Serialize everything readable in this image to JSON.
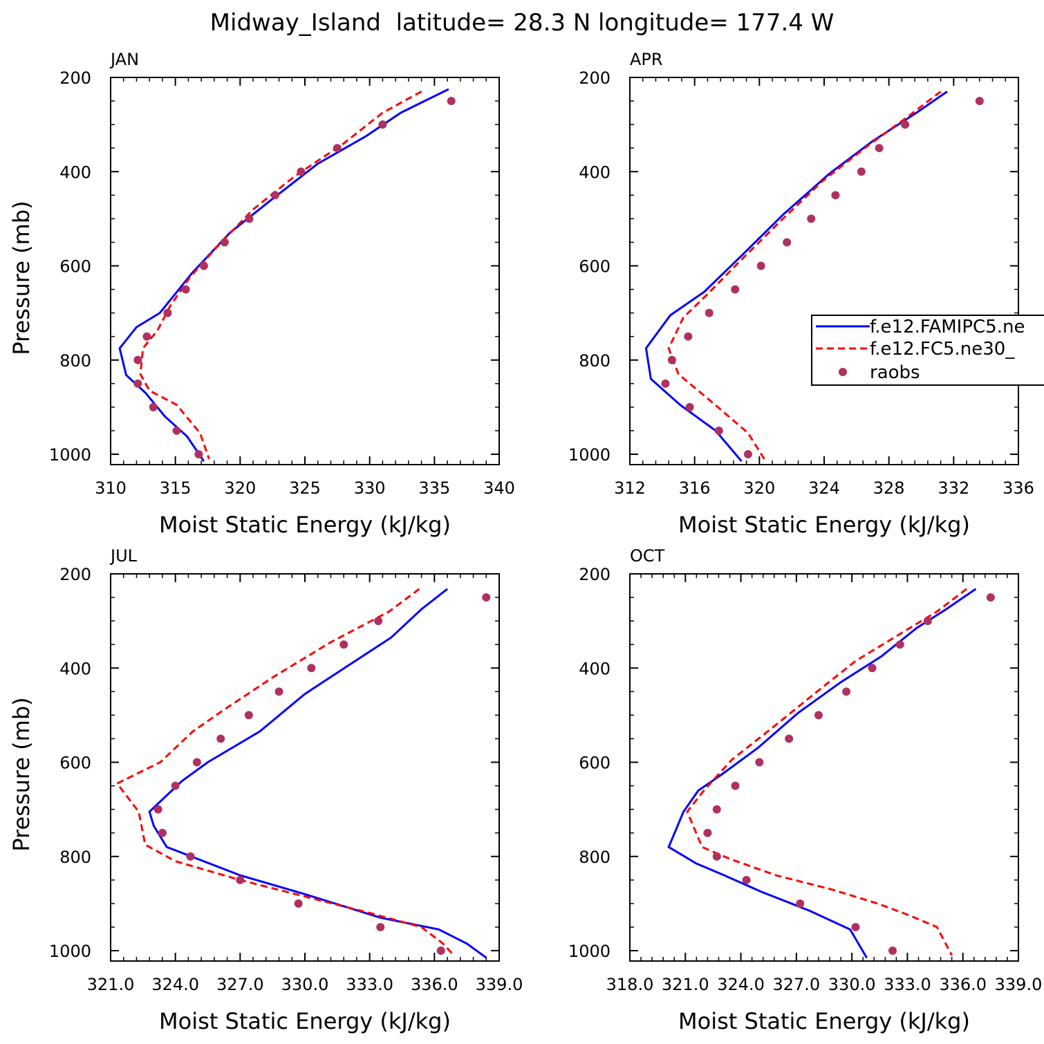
{
  "figure_title": "Midway_Island  latitude= 28.3 N longitude= 177.4 W",
  "legend": {
    "entries": [
      {
        "label": "f.e12.FAMIPC5.ne",
        "color": "#0000ff",
        "style": "solid"
      },
      {
        "label": "f.e12.FC5.ne30_",
        "color": "#ff0000",
        "style": "dashed"
      },
      {
        "label": "raobs",
        "color": "#b03060",
        "style": "dot"
      }
    ]
  },
  "colors": {
    "model1": "#0000ff",
    "model2": "#ff0000",
    "raobs": "#b03060"
  },
  "chart_data": [
    {
      "type": "line",
      "panel": "JAN",
      "title": "JAN",
      "xlabel": "Moist Static Energy (kJ/kg)",
      "ylabel": "Pressure (mb)",
      "xlim": [
        310,
        340
      ],
      "ylim": [
        200,
        1000
      ],
      "y_inverted": true,
      "xticks": [
        "310",
        "315",
        "320",
        "325",
        "330",
        "335",
        "340"
      ],
      "xtick_values": [
        310,
        315,
        320,
        325,
        330,
        335,
        340
      ],
      "yticks": [
        "200",
        "400",
        "600",
        "800",
        "1000"
      ],
      "series": [
        {
          "name": "f.e12.FAMIPC5.ne",
          "style": "line",
          "x": [
            336.1,
            332.4,
            329.7,
            326.0,
            322.4,
            319.2,
            316.3,
            313.8,
            312.0,
            310.7,
            311.2,
            312.7,
            314.2,
            315.9,
            317.2
          ],
          "y": [
            225,
            275,
            325,
            383,
            460,
            530,
            615,
            700,
            730,
            775,
            832,
            870,
            920,
            962,
            1015
          ]
        },
        {
          "name": "f.e12.FC5.ne30_",
          "style": "dashed",
          "x": [
            334.0,
            331.0,
            328.0,
            324.2,
            321.0,
            318.2,
            316.1,
            314.6,
            313.6,
            312.5,
            312.3,
            313.0,
            315.1,
            316.9,
            317.6
          ],
          "y": [
            230,
            275,
            340,
            410,
            480,
            560,
            625,
            685,
            738,
            775,
            830,
            865,
            895,
            955,
            1010
          ]
        },
        {
          "name": "raobs",
          "style": "dot",
          "x": [
            336.3,
            331.0,
            327.5,
            324.7,
            322.7,
            320.7,
            318.8,
            317.2,
            315.8,
            314.4,
            312.8,
            312.1,
            312.1,
            313.3,
            315.1,
            316.8
          ],
          "y": [
            250,
            300,
            350,
            400,
            450,
            500,
            550,
            600,
            650,
            700,
            750,
            800,
            850,
            900,
            950,
            1000
          ]
        }
      ]
    },
    {
      "type": "line",
      "panel": "APR",
      "title": "APR",
      "xlabel": "Moist Static Energy (kJ/kg)",
      "ylabel": "",
      "xlim": [
        312,
        336
      ],
      "ylim": [
        200,
        1000
      ],
      "y_inverted": true,
      "xticks": [
        "312",
        "316",
        "320",
        "324",
        "328",
        "332",
        "336"
      ],
      "xtick_values": [
        312,
        316,
        320,
        324,
        328,
        332,
        336
      ],
      "yticks": [
        "200",
        "400",
        "600",
        "800",
        "1000"
      ],
      "series": [
        {
          "name": "f.e12.FAMIPC5.ne",
          "style": "line",
          "x": [
            331.6,
            329.7,
            327.0,
            324.3,
            321.5,
            319.0,
            316.6,
            314.5,
            313.0,
            313.3,
            315.1,
            317.3,
            318.9
          ],
          "y": [
            230,
            275,
            335,
            405,
            490,
            575,
            655,
            705,
            775,
            840,
            895,
            950,
            1015
          ]
        },
        {
          "name": "f.e12.FC5.ne30_",
          "style": "dashed",
          "x": [
            331.2,
            329.3,
            326.7,
            323.9,
            321.3,
            318.8,
            316.8,
            315.3,
            314.4,
            315.0,
            317.1,
            319.3,
            320.3
          ],
          "y": [
            230,
            280,
            345,
            420,
            505,
            590,
            660,
            710,
            775,
            830,
            890,
            955,
            1010
          ]
        },
        {
          "name": "raobs",
          "style": "dot",
          "x": [
            333.6,
            329.0,
            327.4,
            326.3,
            324.7,
            323.2,
            321.7,
            320.1,
            318.5,
            316.9,
            315.6,
            314.6,
            314.2,
            315.7,
            317.5,
            319.3
          ],
          "y": [
            250,
            300,
            350,
            400,
            450,
            500,
            550,
            600,
            650,
            700,
            750,
            800,
            850,
            900,
            950,
            1000
          ]
        }
      ]
    },
    {
      "type": "line",
      "panel": "JUL",
      "title": "JUL",
      "xlabel": "Moist Static Energy (kJ/kg)",
      "ylabel": "Pressure (mb)",
      "xlim": [
        321.0,
        339.0
      ],
      "ylim": [
        200,
        1000
      ],
      "y_inverted": true,
      "xticks": [
        "321.0",
        "324.0",
        "327.0",
        "330.0",
        "333.0",
        "336.0",
        "339.0"
      ],
      "xtick_values": [
        321,
        324,
        327,
        330,
        333,
        336,
        339
      ],
      "yticks": [
        "200",
        "400",
        "600",
        "800",
        "1000"
      ],
      "series": [
        {
          "name": "f.e12.FAMIPC5.ne",
          "style": "line",
          "x": [
            336.6,
            335.4,
            334.0,
            332.0,
            330.0,
            327.9,
            325.5,
            324.3,
            322.8,
            323.0,
            323.6,
            327.0,
            330.0,
            333.5,
            336.2,
            337.5,
            338.4
          ],
          "y": [
            232,
            275,
            335,
            395,
            455,
            535,
            600,
            640,
            705,
            735,
            780,
            840,
            880,
            930,
            955,
            985,
            1015
          ]
        },
        {
          "name": "f.e12.FC5.ne30_",
          "style": "dashed",
          "x": [
            335.3,
            333.9,
            331.2,
            328.5,
            326.2,
            324.8,
            323.3,
            321.3,
            322.3,
            322.6,
            324.0,
            327.0,
            330.0,
            333.0,
            335.4,
            336.4,
            336.9
          ],
          "y": [
            232,
            280,
            345,
            420,
            490,
            535,
            600,
            645,
            705,
            775,
            810,
            850,
            885,
            920,
            950,
            985,
            1010
          ]
        },
        {
          "name": "raobs",
          "style": "dot",
          "x": [
            338.4,
            333.4,
            331.8,
            330.3,
            328.8,
            327.4,
            326.1,
            325.0,
            324.0,
            323.2,
            323.4,
            324.7,
            327.0,
            329.7,
            333.5,
            336.3
          ],
          "y": [
            250,
            300,
            350,
            400,
            450,
            500,
            550,
            600,
            650,
            700,
            750,
            800,
            850,
            900,
            950,
            1000
          ]
        }
      ]
    },
    {
      "type": "line",
      "panel": "OCT",
      "title": "OCT",
      "xlabel": "Moist Static Energy (kJ/kg)",
      "ylabel": "",
      "xlim": [
        318.0,
        339.0
      ],
      "ylim": [
        200,
        1000
      ],
      "y_inverted": true,
      "xticks": [
        "318.0",
        "321.0",
        "324.0",
        "327.0",
        "330.0",
        "333.0",
        "336.0",
        "339.0"
      ],
      "xtick_values": [
        318,
        321,
        324,
        327,
        330,
        333,
        336,
        339
      ],
      "yticks": [
        "200",
        "400",
        "600",
        "800",
        "1000"
      ],
      "series": [
        {
          "name": "f.e12.FAMIPC5.ne",
          "style": "line",
          "x": [
            336.7,
            335.1,
            333.5,
            331.6,
            329.4,
            327.1,
            324.9,
            323.0,
            321.7,
            320.9,
            320.1,
            321.6,
            323.1,
            325.1,
            327.7,
            329.9,
            330.8
          ],
          "y": [
            232,
            275,
            315,
            375,
            430,
            495,
            570,
            625,
            660,
            705,
            780,
            815,
            840,
            875,
            915,
            955,
            1015
          ]
        },
        {
          "name": "f.e12.FC5.ne30_",
          "style": "dashed",
          "x": [
            336.2,
            334.6,
            332.5,
            330.2,
            327.8,
            325.6,
            323.5,
            322.0,
            321.1,
            321.9,
            323.4,
            325.9,
            328.9,
            331.4,
            333.1,
            334.6,
            335.4
          ],
          "y": [
            232,
            280,
            330,
            385,
            460,
            530,
            595,
            660,
            705,
            780,
            805,
            840,
            870,
            900,
            925,
            950,
            1010
          ]
        },
        {
          "name": "raobs",
          "style": "dot",
          "x": [
            337.5,
            334.1,
            332.6,
            331.1,
            329.7,
            328.2,
            326.6,
            325.0,
            323.7,
            322.7,
            322.2,
            322.7,
            324.3,
            327.2,
            330.2,
            332.2
          ],
          "y": [
            250,
            300,
            350,
            400,
            450,
            500,
            550,
            600,
            650,
            700,
            750,
            800,
            850,
            900,
            950,
            1000
          ]
        }
      ]
    }
  ]
}
